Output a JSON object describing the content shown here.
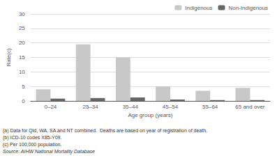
{
  "chart_data": {
    "type": "bar",
    "categories": [
      "0–24",
      "25–34",
      "35–44",
      "45–54",
      "55–64",
      "65 and over"
    ],
    "series": [
      {
        "name": "Indigenous",
        "color": "#c8c8c8",
        "values": [
          4.0,
          19.5,
          15.0,
          5.0,
          3.5,
          4.5
        ]
      },
      {
        "name": "Non-Indigenous",
        "color": "#666666",
        "values": [
          0.8,
          1.0,
          1.2,
          0.5,
          0.3,
          0.3
        ]
      }
    ],
    "xlabel": "Age group (years)",
    "ylabel": "Rate(c)",
    "ylim": [
      0,
      30
    ],
    "yticks": [
      0,
      5,
      10,
      15,
      20,
      25,
      30
    ],
    "grid": true,
    "legend": "upper right",
    "annotations": [
      "(a) Data for Qld, WA, SA and NT combined.  Deaths are based on year of registration of death.",
      "(b) ICD-10 codes X85-Y09.",
      "(c) Per 100,000 population.",
      "Source: AIHW National Mortality Database"
    ]
  }
}
